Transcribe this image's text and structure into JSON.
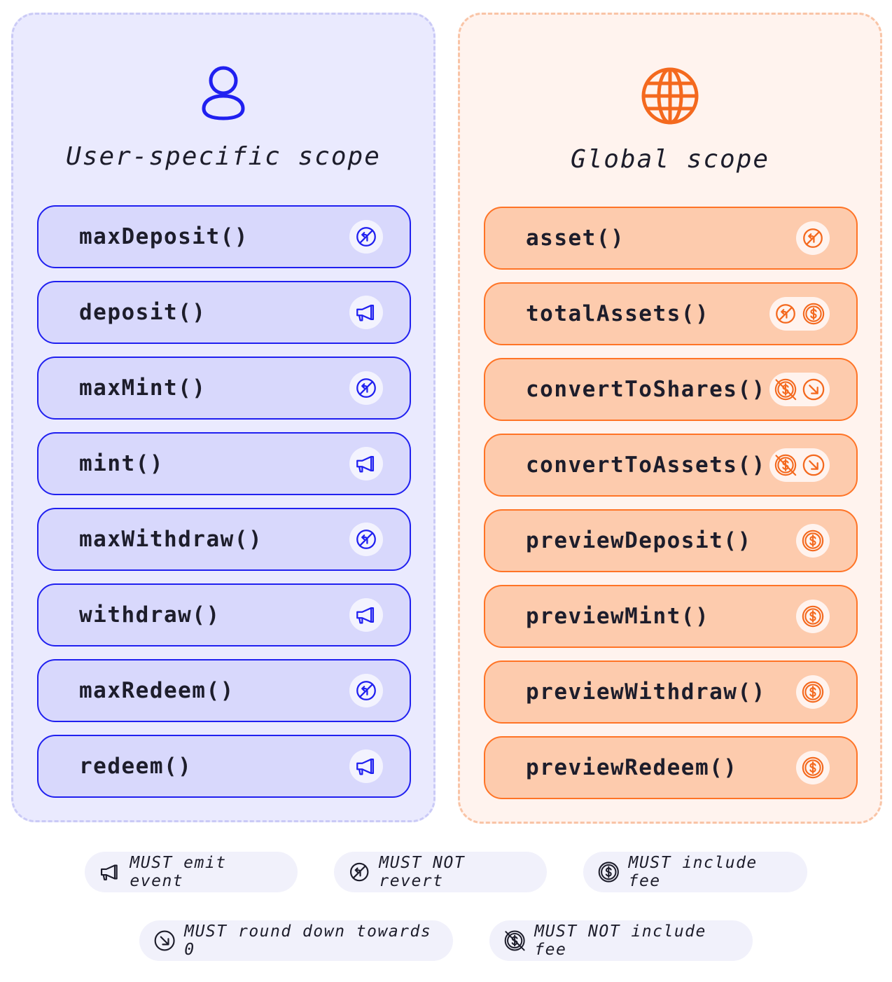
{
  "colors": {
    "user_accent": "#2020F0",
    "global_accent": "#F4691E"
  },
  "user_scope": {
    "title": "User-specific scope",
    "icon": "user-icon",
    "items": [
      {
        "label": "maxDeposit()",
        "icons": [
          "no-revert-icon"
        ]
      },
      {
        "label": "deposit()",
        "icons": [
          "megaphone-icon"
        ]
      },
      {
        "label": "maxMint()",
        "icons": [
          "no-revert-icon"
        ]
      },
      {
        "label": "mint()",
        "icons": [
          "megaphone-icon"
        ]
      },
      {
        "label": "maxWithdraw()",
        "icons": [
          "no-revert-icon"
        ]
      },
      {
        "label": "withdraw()",
        "icons": [
          "megaphone-icon"
        ]
      },
      {
        "label": "maxRedeem()",
        "icons": [
          "no-revert-icon"
        ]
      },
      {
        "label": "redeem()",
        "icons": [
          "megaphone-icon"
        ]
      }
    ]
  },
  "global_scope": {
    "title": "Global scope",
    "icon": "globe-icon",
    "items": [
      {
        "label": "asset()",
        "icons": [
          "no-revert-icon"
        ]
      },
      {
        "label": "totalAssets()",
        "icons": [
          "no-revert-icon",
          "fee-icon"
        ]
      },
      {
        "label": "convertToShares()",
        "icons": [
          "no-fee-icon",
          "round-down-icon"
        ]
      },
      {
        "label": "convertToAssets()",
        "icons": [
          "no-fee-icon",
          "round-down-icon"
        ]
      },
      {
        "label": "previewDeposit()",
        "icons": [
          "fee-icon"
        ]
      },
      {
        "label": "previewMint()",
        "icons": [
          "fee-icon"
        ]
      },
      {
        "label": "previewWithdraw()",
        "icons": [
          "fee-icon"
        ]
      },
      {
        "label": "previewRedeem()",
        "icons": [
          "fee-icon"
        ]
      }
    ]
  },
  "legend": [
    {
      "icon": "megaphone-icon",
      "label": "MUST emit event"
    },
    {
      "icon": "no-revert-icon",
      "label": "MUST NOT revert"
    },
    {
      "icon": "fee-icon",
      "label": "MUST include fee"
    },
    {
      "icon": "round-down-icon",
      "label": "MUST round down towards 0"
    },
    {
      "icon": "no-fee-icon",
      "label": "MUST NOT include fee"
    }
  ]
}
